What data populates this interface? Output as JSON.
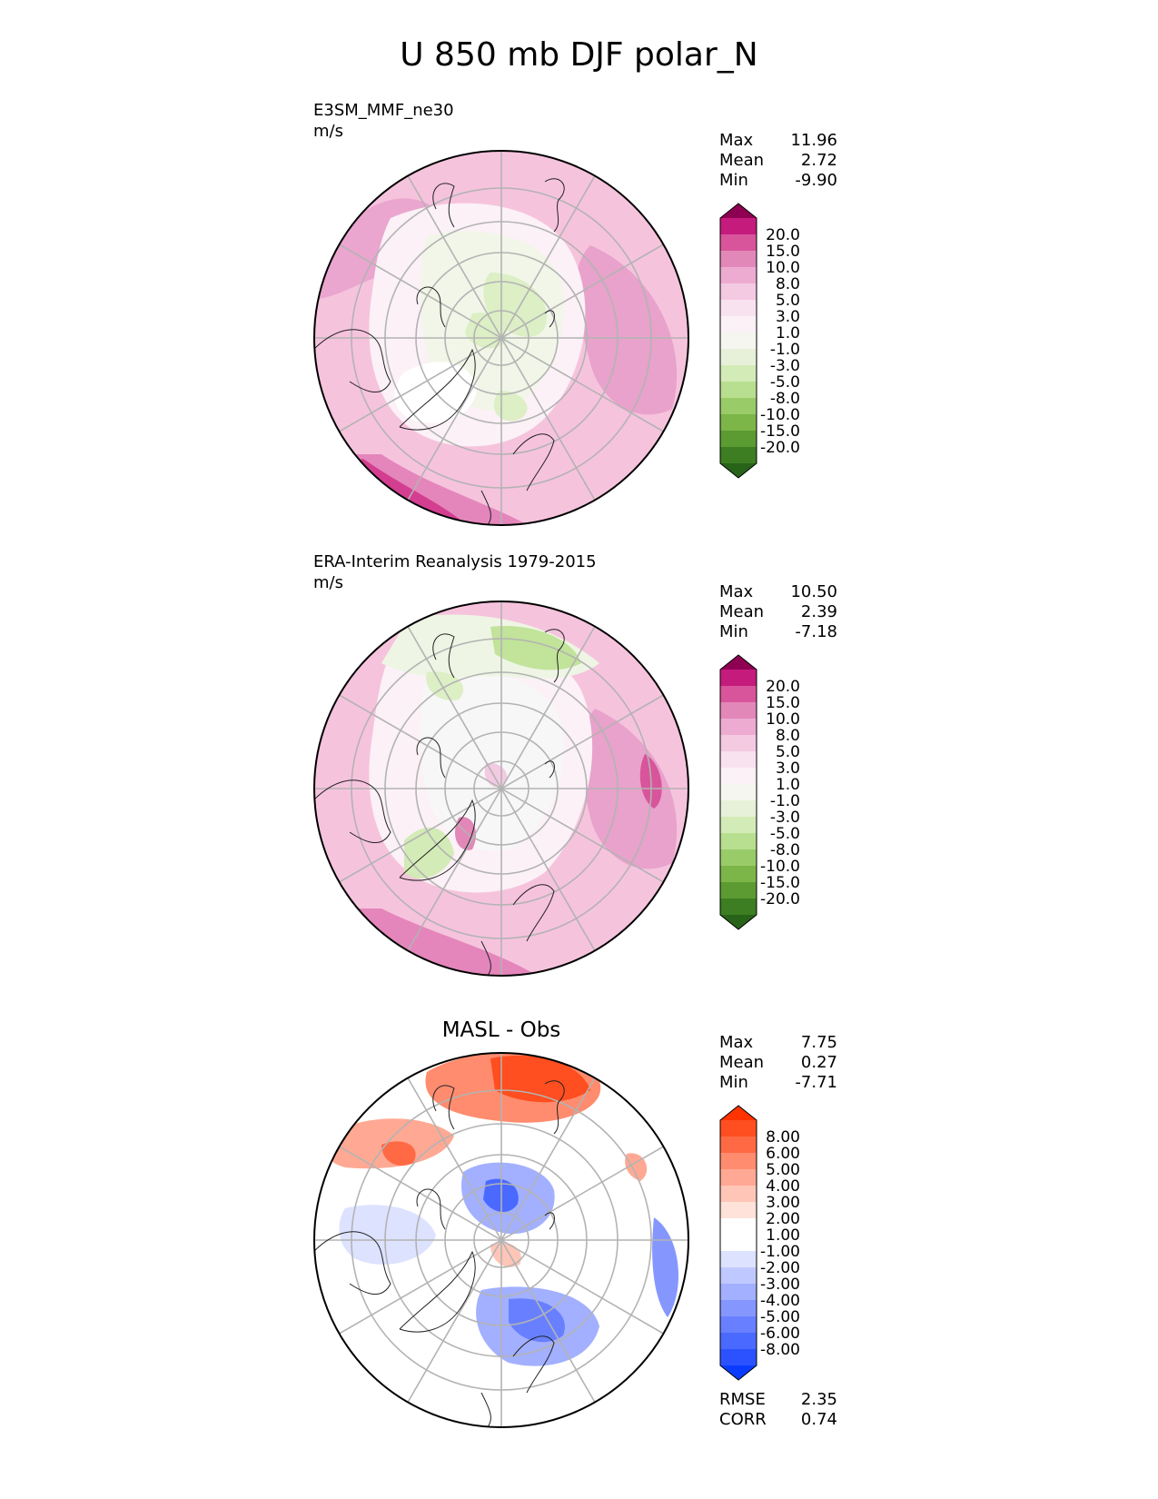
{
  "title": "U 850 mb DJF polar_N",
  "colors": {
    "test_fill": [
      "#8e0152",
      "#b7106b",
      "#d33e90",
      "#e07ab3",
      "#eaa6cf",
      "#f3c8e2",
      "#f8e1ef",
      "#fbf1f6",
      "#f7f7f7",
      "#eef5e4",
      "#dcefc5",
      "#c1e39a",
      "#a3d270",
      "#7fba48",
      "#5c9f2e",
      "#3f8520",
      "#276419"
    ],
    "test_legend": [
      "#8e0152",
      "#c51b7d",
      "#d8559b",
      "#e288b9",
      "#edabd1",
      "#f4c9e2",
      "#f9e2ef",
      "#fbf1f7",
      "#f4f6ef",
      "#e7f1d9",
      "#d3ebb6",
      "#b8df8f",
      "#9acb69",
      "#7cb548",
      "#5c9b32",
      "#3d7e22",
      "#276419"
    ],
    "diff_legend": [
      "#ff3300",
      "#ff4e1f",
      "#ff6a45",
      "#ff8c6e",
      "#ffa994",
      "#ffc6b7",
      "#ffe2da",
      "#ffffff",
      "#ffffff",
      "#dde2ff",
      "#c0c9ff",
      "#a2b0ff",
      "#8597ff",
      "#6880ff",
      "#4a69ff",
      "#2c52ff",
      "#0a3cff"
    ]
  },
  "panels": [
    {
      "id": "test",
      "name_label": "E3SM_MMF_ne30",
      "units_label": "m/s",
      "stats": [
        {
          "label": "Max",
          "value": "11.96"
        },
        {
          "label": "Mean",
          "value": "2.72"
        },
        {
          "label": "Min",
          "value": "-9.90"
        }
      ],
      "colorbar_labels": [
        "20.0",
        "15.0",
        "10.0",
        "8.0",
        "5.0",
        "3.0",
        "1.0",
        "-1.0",
        "-3.0",
        "-5.0",
        "-8.0",
        "-10.0",
        "-15.0",
        "-20.0"
      ]
    },
    {
      "id": "ref",
      "name_label": "ERA-Interim Reanalysis 1979-2015",
      "units_label": "m/s",
      "stats": [
        {
          "label": "Max",
          "value": "10.50"
        },
        {
          "label": "Mean",
          "value": "2.39"
        },
        {
          "label": "Min",
          "value": "-7.18"
        }
      ],
      "colorbar_labels": [
        "20.0",
        "15.0",
        "10.0",
        "8.0",
        "5.0",
        "3.0",
        "1.0",
        "-1.0",
        "-3.0",
        "-5.0",
        "-8.0",
        "-10.0",
        "-15.0",
        "-20.0"
      ]
    },
    {
      "id": "diff",
      "center_title": "MASL - Obs",
      "stats": [
        {
          "label": "Max",
          "value": "7.75"
        },
        {
          "label": "Mean",
          "value": "0.27"
        },
        {
          "label": "Min",
          "value": "-7.71"
        }
      ],
      "colorbar_labels": [
        "8.00",
        "6.00",
        "5.00",
        "4.00",
        "3.00",
        "2.00",
        "1.00",
        "-1.00",
        "-2.00",
        "-3.00",
        "-4.00",
        "-5.00",
        "-6.00",
        "-8.00"
      ],
      "metrics": [
        {
          "label": "RMSE",
          "value": "2.35"
        },
        {
          "label": "CORR",
          "value": "0.74"
        }
      ]
    }
  ],
  "chart_data": [
    {
      "type": "heatmap",
      "projection": "north polar stereographic",
      "variable": "U 850 mb DJF",
      "panel": "E3SM_MMF_ne30",
      "units": "m/s",
      "stats": {
        "max": 11.96,
        "mean": 2.72,
        "min": -9.9
      },
      "contour_levels": [
        -20,
        -15,
        -10,
        -8,
        -5,
        -3,
        -1,
        1,
        3,
        5,
        8,
        10,
        15,
        20
      ],
      "colormap": "diverging pink (positive) / green (negative)"
    },
    {
      "type": "heatmap",
      "projection": "north polar stereographic",
      "variable": "U 850 mb DJF",
      "panel": "ERA-Interim Reanalysis 1979-2015",
      "units": "m/s",
      "stats": {
        "max": 10.5,
        "mean": 2.39,
        "min": -7.18
      },
      "contour_levels": [
        -20,
        -15,
        -10,
        -8,
        -5,
        -3,
        -1,
        1,
        3,
        5,
        8,
        10,
        15,
        20
      ],
      "colormap": "diverging pink (positive) / green (negative)"
    },
    {
      "type": "heatmap",
      "projection": "north polar stereographic",
      "panel": "MASL - Obs",
      "stats": {
        "max": 7.75,
        "mean": 0.27,
        "min": -7.71
      },
      "metrics": {
        "rmse": 2.35,
        "corr": 0.74
      },
      "contour_levels": [
        -8,
        -6,
        -5,
        -4,
        -3,
        -2,
        -1,
        1,
        2,
        3,
        4,
        5,
        6,
        8
      ],
      "colormap": "diverging red (positive) / blue (negative)"
    }
  ]
}
